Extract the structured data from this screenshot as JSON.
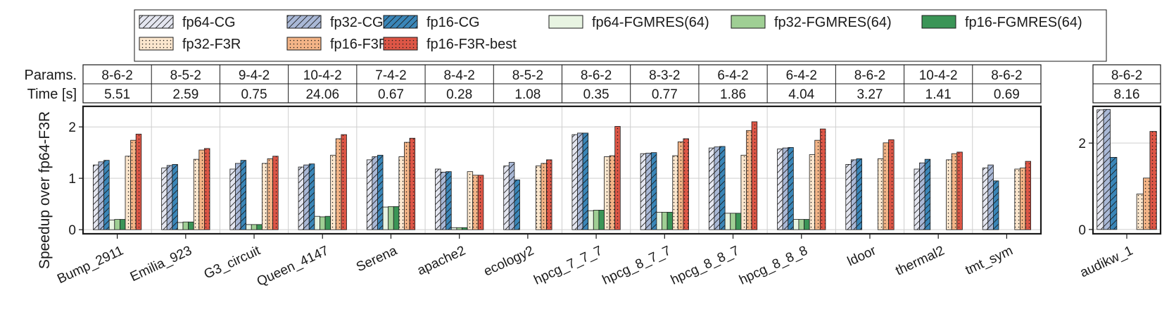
{
  "chart_data": {
    "type": "bar",
    "ylabel": "Speedup over fp64-F3R",
    "params_label": "Params.",
    "time_label": "Time [s]",
    "colors": {
      "fp64-CG": "#e4e6f0",
      "fp32-CG": "#a9b8d6",
      "fp16-CG": "#3a86b8",
      "fp64-FGMRES(64)": "#e8f4e2",
      "fp32-FGMRES(64)": "#9fcf94",
      "fp16-FGMRES(64)": "#3b9557",
      "fp32-F3R": "#fbe6cd",
      "fp16-F3R": "#f3b487",
      "fp16-F3R-best": "#dd5646"
    },
    "legend": [
      "fp64-CG",
      "fp32-CG",
      "fp16-CG",
      "fp64-FGMRES(64)",
      "fp32-FGMRES(64)",
      "fp16-FGMRES(64)",
      "fp32-F3R",
      "fp16-F3R",
      "fp16-F3R-best"
    ],
    "panels": [
      {
        "name": "main",
        "ylim": [
          -0.08,
          2.4
        ],
        "yticks": [
          0,
          1,
          2
        ],
        "categories": [
          "Bump_2911",
          "Emilia_923",
          "G3_circuit",
          "Queen_4147",
          "Serena",
          "apache2",
          "ecology2",
          "hpcg_7_7_7",
          "hpcg_8_7_7",
          "hpcg_8_8_7",
          "hpcg_8_8_8",
          "ldoor",
          "thermal2",
          "tmt_sym"
        ],
        "params": [
          "8-6-2",
          "8-5-2",
          "9-4-2",
          "10-4-2",
          "7-4-2",
          "8-4-2",
          "8-5-2",
          "8-6-2",
          "8-3-2",
          "6-4-2",
          "6-4-2",
          "8-6-2",
          "10-4-2",
          "8-6-2"
        ],
        "times": [
          "5.51",
          "2.59",
          "0.75",
          "24.06",
          "0.67",
          "0.28",
          "1.08",
          "0.35",
          "0.77",
          "1.86",
          "4.04",
          "3.27",
          "1.41",
          "0.69"
        ],
        "series": [
          {
            "name": "fp64-CG",
            "values": [
              1.26,
              1.2,
              1.18,
              1.22,
              1.36,
              1.18,
              1.24,
              1.85,
              1.48,
              1.59,
              1.57,
              1.27,
              1.18,
              1.2
            ]
          },
          {
            "name": "fp32-CG",
            "values": [
              1.32,
              1.25,
              1.29,
              1.26,
              1.42,
              1.12,
              1.31,
              1.88,
              1.49,
              1.61,
              1.59,
              1.36,
              1.3,
              1.26
            ]
          },
          {
            "name": "fp16-CG",
            "values": [
              1.35,
              1.27,
              1.35,
              1.28,
              1.45,
              1.13,
              0.97,
              1.88,
              1.5,
              1.62,
              1.6,
              1.38,
              1.37,
              0.95
            ]
          },
          {
            "name": "fp64-FGMRES(64)",
            "values": [
              0.19,
              0.14,
              0.1,
              0.26,
              0.44,
              0.04,
              null,
              0.37,
              0.34,
              0.32,
              0.2,
              null,
              null,
              null
            ]
          },
          {
            "name": "fp32-FGMRES(64)",
            "values": [
              0.2,
              0.15,
              0.1,
              0.25,
              0.45,
              0.04,
              null,
              0.38,
              0.34,
              0.32,
              0.2,
              null,
              null,
              null
            ]
          },
          {
            "name": "fp16-FGMRES(64)",
            "values": [
              0.2,
              0.15,
              0.1,
              0.26,
              0.45,
              0.04,
              null,
              0.38,
              0.34,
              0.32,
              0.2,
              null,
              null,
              null
            ]
          },
          {
            "name": "fp32-F3R",
            "values": [
              1.43,
              1.37,
              1.29,
              1.45,
              1.42,
              1.13,
              1.24,
              1.42,
              1.44,
              1.45,
              1.46,
              1.38,
              1.36,
              1.18
            ]
          },
          {
            "name": "fp16-F3R",
            "values": [
              1.74,
              1.55,
              1.38,
              1.77,
              1.7,
              1.06,
              1.29,
              1.44,
              1.71,
              1.93,
              1.74,
              1.69,
              1.48,
              1.2
            ]
          },
          {
            "name": "fp16-F3R-best",
            "values": [
              1.86,
              1.58,
              1.43,
              1.85,
              1.78,
              1.06,
              1.36,
              2.01,
              1.77,
              2.1,
              1.96,
              1.75,
              1.51,
              1.33
            ]
          }
        ]
      },
      {
        "name": "right",
        "ylim": [
          -0.1,
          2.85
        ],
        "yticks": [
          0,
          2
        ],
        "categories": [
          "audikw_1"
        ],
        "params": [
          "8-6-2"
        ],
        "times": [
          "8.16"
        ],
        "series": [
          {
            "name": "fp64-CG",
            "values": [
              2.77
            ]
          },
          {
            "name": "fp32-CG",
            "values": [
              2.78
            ]
          },
          {
            "name": "fp16-CG",
            "values": [
              1.67
            ]
          },
          {
            "name": "fp64-FGMRES(64)",
            "values": [
              null
            ]
          },
          {
            "name": "fp32-FGMRES(64)",
            "values": [
              null
            ]
          },
          {
            "name": "fp16-FGMRES(64)",
            "values": [
              null
            ]
          },
          {
            "name": "fp32-F3R",
            "values": [
              0.82
            ]
          },
          {
            "name": "fp16-F3R",
            "values": [
              1.19
            ]
          },
          {
            "name": "fp16-F3R-best",
            "values": [
              2.27
            ]
          }
        ]
      }
    ]
  }
}
